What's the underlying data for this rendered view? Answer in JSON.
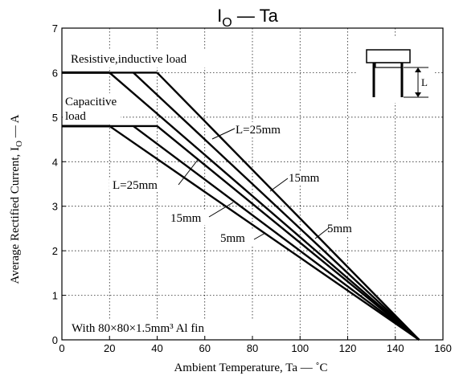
{
  "chart_data": {
    "type": "line",
    "title": "I",
    "title_subscript": "O",
    "title_rest": " — Ta",
    "xlabel": "Ambient Temperature, Ta   —   ˚C",
    "ylabel": "Average Rectified Current, I",
    "ylabel_subscript": "O",
    "ylabel_rest": "   —   A",
    "xlim": [
      0,
      160
    ],
    "ylim": [
      0,
      7
    ],
    "xticks": [
      0,
      20,
      40,
      60,
      80,
      100,
      120,
      140,
      160
    ],
    "yticks": [
      0,
      1,
      2,
      3,
      4,
      5,
      6,
      7
    ],
    "grid": true,
    "series": [
      {
        "group": "resistive",
        "points": [
          [
            20,
            6
          ],
          [
            150,
            0
          ]
        ]
      },
      {
        "group": "resistive",
        "points": [
          [
            30,
            6
          ],
          [
            150,
            0
          ]
        ]
      },
      {
        "group": "resistive",
        "points": [
          [
            40,
            6
          ],
          [
            150,
            0
          ]
        ]
      },
      {
        "group": "resistive",
        "points": [
          [
            20,
            6
          ],
          [
            40,
            6
          ]
        ]
      },
      {
        "group": "capacitive",
        "points": [
          [
            20,
            4.8
          ],
          [
            150,
            0
          ]
        ]
      },
      {
        "group": "capacitive",
        "points": [
          [
            30,
            4.8
          ],
          [
            150,
            0
          ]
        ]
      },
      {
        "group": "capacitive",
        "points": [
          [
            40,
            4.8
          ],
          [
            150,
            0
          ]
        ]
      },
      {
        "group": "capacitive",
        "points": [
          [
            20,
            4.8
          ],
          [
            40,
            4.8
          ]
        ]
      }
    ],
    "baselines": [
      {
        "points": [
          [
            0,
            6
          ],
          [
            20,
            6
          ]
        ]
      },
      {
        "points": [
          [
            0,
            4.8
          ],
          [
            20,
            4.8
          ]
        ]
      }
    ],
    "annotations": {
      "resistive_label": "Resistive,inductive load",
      "capacitive_label_1": "Capacitive",
      "capacitive_label_2": "load",
      "res_L25": "L=25mm",
      "res_15": "15mm",
      "res_5": "5mm",
      "cap_L25": "L=25mm",
      "cap_15": "15mm",
      "cap_5": "5mm",
      "fin_note": "With 80×80×1.5mm³ Al fin",
      "inset_L": "L"
    }
  }
}
